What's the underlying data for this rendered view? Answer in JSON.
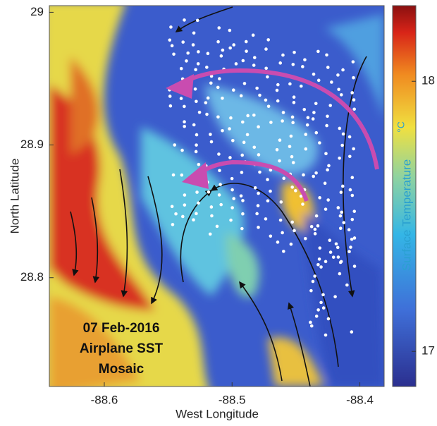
{
  "chart_data": {
    "type": "heatmap",
    "xlabel": "West Longitude",
    "ylabel": "North Latitude",
    "xlim": [
      -88.643,
      -88.381
    ],
    "xticks": [
      -88.6,
      -88.5,
      -88.4
    ],
    "ylim": [
      28.718,
      29.005
    ],
    "yticks": [
      28.8,
      28.9,
      29
    ],
    "annotation": [
      "07 Feb-2016",
      "Airplane SST",
      "Mosaic"
    ],
    "colorbar": {
      "label": "Surface Temperature",
      "unit": "°C",
      "lim": [
        16.87,
        18.28
      ],
      "ticks": [
        17,
        18
      ]
    }
  }
}
